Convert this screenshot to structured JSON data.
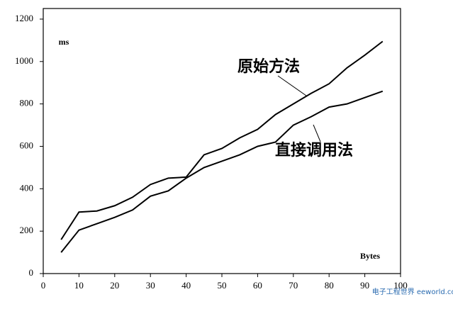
{
  "chart_data": {
    "type": "line",
    "y_label": "ms",
    "x_label": "Bytes",
    "x": [
      5,
      10,
      15,
      20,
      25,
      30,
      35,
      40,
      45,
      50,
      55,
      60,
      65,
      70,
      75,
      80,
      85,
      90,
      95
    ],
    "series": [
      {
        "name": "原始方法",
        "color": "#000000",
        "values": [
          160,
          290,
          295,
          320,
          360,
          420,
          450,
          455,
          560,
          590,
          640,
          680,
          750,
          800,
          850,
          895,
          970,
          1030,
          1095
        ]
      },
      {
        "name": "直接调用法",
        "color": "#000000",
        "values": [
          100,
          205,
          235,
          265,
          300,
          365,
          390,
          450,
          500,
          530,
          560,
          600,
          620,
          700,
          740,
          785,
          800,
          830,
          860
        ]
      }
    ],
    "xlim": [
      0,
      100
    ],
    "xticks": [
      0,
      10,
      20,
      30,
      40,
      50,
      60,
      70,
      80,
      90,
      100
    ],
    "ylim": [
      0,
      1250
    ],
    "yticks": [
      0,
      200,
      400,
      600,
      800,
      1000,
      1200
    ],
    "grid": false,
    "watermark": "电子工程世界 eeworld.com.cn"
  }
}
